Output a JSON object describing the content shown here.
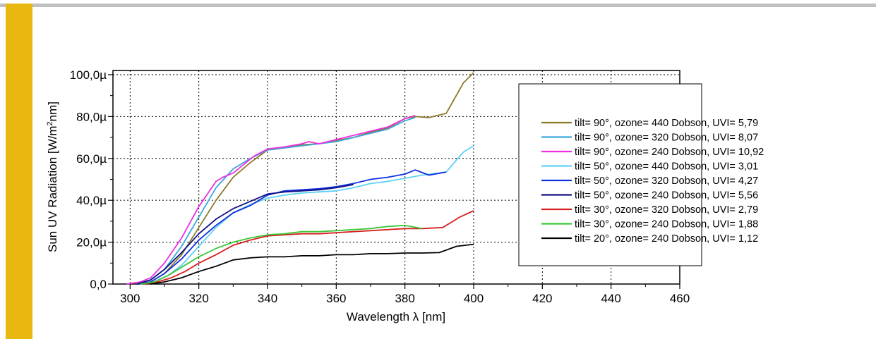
{
  "chart_data": {
    "type": "line",
    "xlabel": "Wavelength λ [nm]",
    "ylabel_main": "Sun UV Radiation [W/m",
    "ylabel_sup": "2",
    "ylabel_tail": "nm]",
    "xlim": [
      295,
      460
    ],
    "ylim": [
      0,
      102
    ],
    "x_ticks": [
      300,
      320,
      340,
      360,
      380,
      400,
      420,
      440,
      460
    ],
    "y_ticks": [
      {
        "value": 0,
        "label": "0,0"
      },
      {
        "value": 20,
        "label": "20,0µ"
      },
      {
        "value": 40,
        "label": "40,0µ"
      },
      {
        "value": 60,
        "label": "60,0µ"
      },
      {
        "value": 80,
        "label": "80,0µ"
      },
      {
        "value": 100,
        "label": "100,0µ"
      }
    ],
    "grid": true,
    "legend_position": "right",
    "series": [
      {
        "name": "tilt= 90°, ozone= 440 Dobson, UVI= 5,79",
        "color": "#8b7a2a",
        "points": [
          [
            302,
            0
          ],
          [
            306,
            1
          ],
          [
            310,
            5
          ],
          [
            315,
            14
          ],
          [
            320,
            27
          ],
          [
            325,
            40
          ],
          [
            330,
            51
          ],
          [
            335,
            58
          ],
          [
            340,
            64
          ],
          [
            345,
            65
          ],
          [
            350,
            66.5
          ],
          [
            355,
            67
          ],
          [
            360,
            68.5
          ],
          [
            365,
            70
          ],
          [
            370,
            72.5
          ],
          [
            375,
            74.5
          ],
          [
            380,
            79
          ],
          [
            383,
            80
          ],
          [
            387,
            79.5
          ],
          [
            392,
            81.5
          ],
          [
            397,
            96
          ],
          [
            400,
            101
          ]
        ]
      },
      {
        "name": "tilt= 90°, ozone= 320 Dobson, UVI= 8,07",
        "color": "#3aa8dc",
        "points": [
          [
            302,
            0
          ],
          [
            306,
            2
          ],
          [
            310,
            7
          ],
          [
            315,
            18
          ],
          [
            320,
            32
          ],
          [
            325,
            46
          ],
          [
            330,
            55
          ],
          [
            335,
            60
          ],
          [
            340,
            64
          ],
          [
            345,
            65
          ],
          [
            350,
            66
          ],
          [
            355,
            67
          ],
          [
            360,
            68
          ],
          [
            365,
            70
          ],
          [
            370,
            72
          ],
          [
            375,
            74
          ],
          [
            380,
            78
          ],
          [
            383,
            79.5
          ]
        ]
      },
      {
        "name": "tilt= 90°, ozone= 240 Dobson, UVI= 10,92",
        "color": "#ee2ee0",
        "points": [
          [
            299,
            0
          ],
          [
            303,
            1
          ],
          [
            306,
            3
          ],
          [
            310,
            10
          ],
          [
            315,
            22
          ],
          [
            320,
            37
          ],
          [
            325,
            49
          ],
          [
            327,
            51
          ],
          [
            330,
            53
          ],
          [
            333,
            57
          ],
          [
            336,
            61
          ],
          [
            340,
            64.5
          ],
          [
            345,
            65.5
          ],
          [
            350,
            67
          ],
          [
            352,
            68
          ],
          [
            355,
            67
          ],
          [
            360,
            69
          ],
          [
            365,
            71
          ],
          [
            370,
            73
          ],
          [
            375,
            75
          ],
          [
            380,
            79
          ],
          [
            383,
            80.5
          ]
        ]
      },
      {
        "name": "tilt= 50°, ozone= 440 Dobson, UVI= 3,01",
        "color": "#5cd2f4",
        "points": [
          [
            303,
            0
          ],
          [
            307,
            1
          ],
          [
            311,
            4
          ],
          [
            315,
            9
          ],
          [
            320,
            18
          ],
          [
            325,
            27
          ],
          [
            330,
            34
          ],
          [
            335,
            38
          ],
          [
            340,
            41
          ],
          [
            345,
            42.5
          ],
          [
            350,
            43.5
          ],
          [
            355,
            44
          ],
          [
            360,
            44.5
          ],
          [
            365,
            46
          ],
          [
            370,
            48
          ],
          [
            375,
            49
          ],
          [
            380,
            50.5
          ],
          [
            385,
            52
          ],
          [
            392,
            53.5
          ],
          [
            397,
            63
          ],
          [
            400,
            66
          ]
        ]
      },
      {
        "name": "tilt= 50°, ozone= 320 Dobson, UVI= 4,27",
        "color": "#1030e0",
        "points": [
          [
            302,
            0
          ],
          [
            306,
            1
          ],
          [
            310,
            5
          ],
          [
            315,
            12
          ],
          [
            320,
            21
          ],
          [
            325,
            28
          ],
          [
            330,
            34
          ],
          [
            335,
            37.5
          ],
          [
            340,
            42.5
          ],
          [
            345,
            44.5
          ],
          [
            350,
            45
          ],
          [
            355,
            45.5
          ],
          [
            360,
            46.5
          ],
          [
            365,
            48
          ],
          [
            370,
            50
          ],
          [
            375,
            51
          ],
          [
            380,
            52.5
          ],
          [
            383,
            54.5
          ],
          [
            387,
            52
          ],
          [
            392,
            53.5
          ]
        ]
      },
      {
        "name": "tilt= 50°, ozone= 240 Dobson, UVI= 5,56",
        "color": "#101080",
        "points": [
          [
            302,
            0
          ],
          [
            306,
            2
          ],
          [
            310,
            7
          ],
          [
            315,
            15
          ],
          [
            320,
            24
          ],
          [
            325,
            31
          ],
          [
            330,
            36
          ],
          [
            335,
            39.5
          ],
          [
            340,
            43
          ],
          [
            345,
            44
          ],
          [
            350,
            44.5
          ],
          [
            355,
            45
          ],
          [
            360,
            46
          ],
          [
            365,
            47.5
          ]
        ]
      },
      {
        "name": "tilt= 30°, ozone= 320 Dobson, UVI= 2,79",
        "color": "#d82020",
        "points": [
          [
            304,
            0
          ],
          [
            308,
            1
          ],
          [
            312,
            3
          ],
          [
            316,
            6
          ],
          [
            320,
            10
          ],
          [
            325,
            14
          ],
          [
            330,
            18.5
          ],
          [
            335,
            21
          ],
          [
            340,
            23
          ],
          [
            345,
            23.5
          ],
          [
            350,
            24
          ],
          [
            355,
            24
          ],
          [
            360,
            24.5
          ],
          [
            365,
            25
          ],
          [
            370,
            25.5
          ],
          [
            375,
            26
          ],
          [
            380,
            26.5
          ],
          [
            385,
            26.5
          ],
          [
            391,
            27
          ],
          [
            396,
            32
          ],
          [
            400,
            35
          ]
        ]
      },
      {
        "name": "tilt= 30°, ozone= 240 Dobson, UVI= 1,88",
        "color": "#38c838",
        "points": [
          [
            303,
            0
          ],
          [
            307,
            1
          ],
          [
            311,
            4
          ],
          [
            315,
            8
          ],
          [
            320,
            13
          ],
          [
            325,
            17
          ],
          [
            330,
            20
          ],
          [
            335,
            22
          ],
          [
            340,
            23.5
          ],
          [
            345,
            24
          ],
          [
            350,
            25
          ],
          [
            355,
            25
          ],
          [
            360,
            25.5
          ],
          [
            365,
            26
          ],
          [
            370,
            26.5
          ],
          [
            375,
            27.5
          ],
          [
            380,
            28
          ],
          [
            385,
            26.5
          ]
        ]
      },
      {
        "name": "tilt= 20°, ozone= 240 Dobson, UVI= 1,12",
        "color": "#000000",
        "points": [
          [
            306,
            0
          ],
          [
            310,
            1
          ],
          [
            315,
            3
          ],
          [
            320,
            6
          ],
          [
            325,
            8.5
          ],
          [
            330,
            11.5
          ],
          [
            335,
            12.5
          ],
          [
            340,
            13
          ],
          [
            345,
            13
          ],
          [
            350,
            13.5
          ],
          [
            355,
            13.5
          ],
          [
            360,
            14
          ],
          [
            365,
            14
          ],
          [
            370,
            14.5
          ],
          [
            375,
            14.5
          ],
          [
            380,
            14.8
          ],
          [
            385,
            14.8
          ],
          [
            390,
            15
          ],
          [
            395,
            18
          ],
          [
            400,
            19
          ]
        ]
      }
    ]
  }
}
